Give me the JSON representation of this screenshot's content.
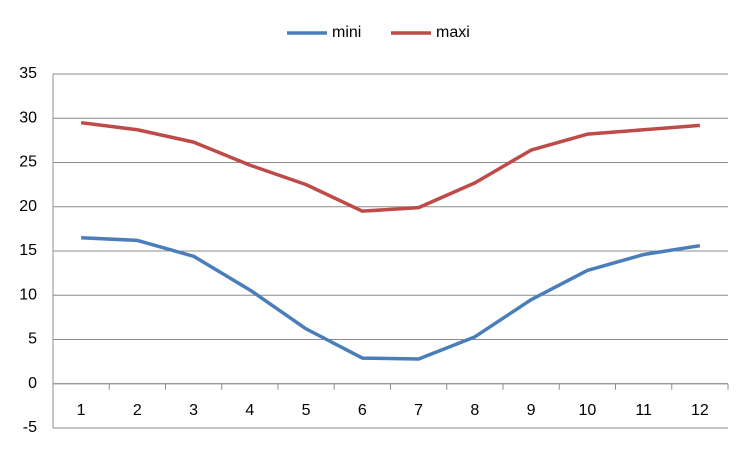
{
  "chart_data": {
    "type": "line",
    "categories": [
      "1",
      "2",
      "3",
      "4",
      "5",
      "6",
      "7",
      "8",
      "9",
      "10",
      "11",
      "12"
    ],
    "series": [
      {
        "name": "mini",
        "color": "#4a7ebb",
        "values": [
          16.5,
          16.2,
          14.4,
          10.6,
          6.2,
          2.9,
          2.8,
          5.3,
          9.5,
          12.8,
          14.6,
          15.6
        ]
      },
      {
        "name": "maxi",
        "color": "#be4b48",
        "values": [
          29.5,
          28.7,
          27.3,
          24.7,
          22.5,
          19.5,
          19.9,
          22.7,
          26.4,
          28.2,
          28.7,
          29.2
        ]
      }
    ],
    "ylim": [
      -5,
      35
    ],
    "yticks": [
      -5,
      0,
      5,
      10,
      15,
      20,
      25,
      30,
      35
    ],
    "grid": true,
    "legend": "top"
  }
}
